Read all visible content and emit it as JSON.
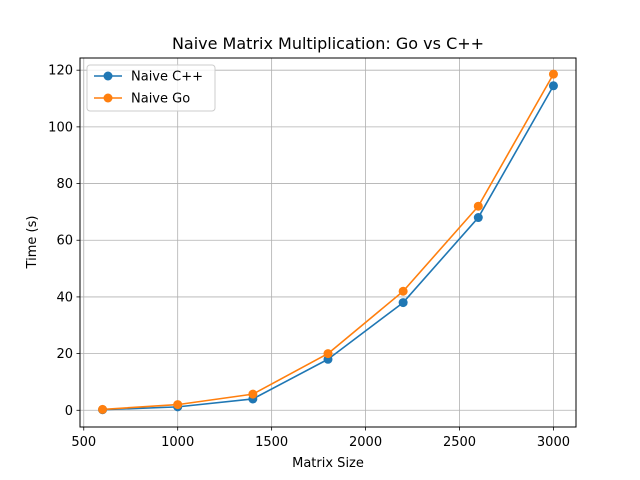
{
  "chart_data": {
    "type": "line",
    "title": "Naive Matrix Multiplication: Go vs C++",
    "xlabel": "Matrix Size",
    "ylabel": "Time (s)",
    "xlim": [
      480,
      3120
    ],
    "ylim": [
      -5.9,
      124.3
    ],
    "xticks": [
      500,
      1000,
      1500,
      2000,
      2500,
      3000
    ],
    "yticks": [
      0,
      20,
      40,
      60,
      80,
      100,
      120
    ],
    "grid": true,
    "legend_position": "top-left",
    "series": [
      {
        "name": "Naive C++",
        "color": "#1f77b4",
        "marker": "circle",
        "x": [
          600,
          1000,
          1400,
          1800,
          2200,
          2600,
          3000
        ],
        "y": [
          0.2,
          1.2,
          4.0,
          18.0,
          38.0,
          68.0,
          114.5
        ]
      },
      {
        "name": "Naive Go",
        "color": "#ff7f0e",
        "marker": "circle",
        "x": [
          600,
          1000,
          1400,
          1800,
          2200,
          2600,
          3000
        ],
        "y": [
          0.3,
          2.0,
          5.7,
          20.0,
          42.0,
          72.0,
          118.6
        ]
      }
    ]
  }
}
